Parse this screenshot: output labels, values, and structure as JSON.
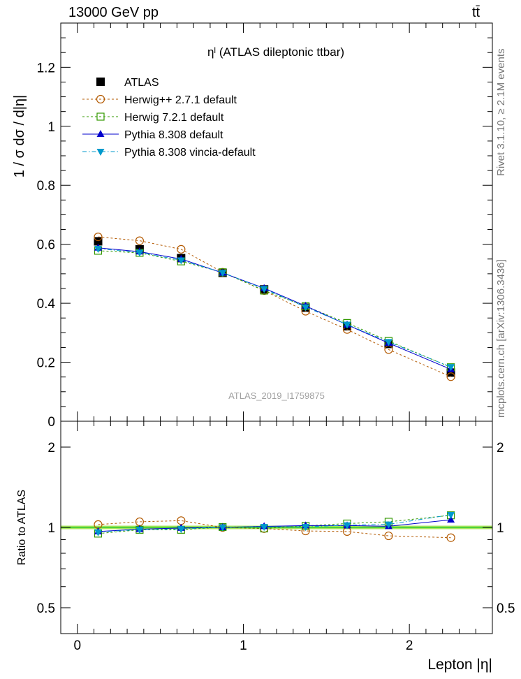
{
  "header": {
    "left": "13000 GeV pp",
    "right": "tt̄"
  },
  "side_text": {
    "rivet": "Rivet 3.1.10, ≥ 2.1M events",
    "mcplots": "mcplots.cern.ch [arXiv:1306.3436]"
  },
  "colors": {
    "atlas": "#000000",
    "herwigpp": "#b35900",
    "herwig7": "#339900",
    "pythia": "#0000cc",
    "vincia": "#0099cc",
    "band": "#a6e65a",
    "refline": "#33cc33",
    "watermark": "#a0a0a0"
  },
  "chart_data": [
    {
      "type": "line",
      "title": "ηˡ (ATLAS dileptonic ttbar)",
      "ylabel": "1 / σ  dσ / d|η|",
      "xlabel": "",
      "watermark": "ATLAS_2019_I1759875",
      "xlim": [
        -0.1,
        2.5
      ],
      "ylim": [
        0,
        1.35
      ],
      "yticks": [
        0,
        0.2,
        0.4,
        0.6,
        0.8,
        1,
        1.2
      ],
      "ytick_labels": [
        "0",
        "0.2",
        "0.4",
        "0.6",
        "0.8",
        "1",
        "1.2"
      ],
      "legend_position": "top-left",
      "x": [
        0.125,
        0.375,
        0.625,
        0.875,
        1.125,
        1.375,
        1.625,
        1.875,
        2.25
      ],
      "series": [
        {
          "name": "ATLAS",
          "key": "atlas",
          "marker": "filled-square",
          "line": "none",
          "values": [
            0.61,
            0.583,
            0.553,
            0.503,
            0.447,
            0.385,
            0.322,
            0.262,
            0.165
          ]
        },
        {
          "name": "Herwig++ 2.7.1 default",
          "key": "herwigpp",
          "marker": "open-circle",
          "line": "dashed",
          "values": [
            0.625,
            0.612,
            0.583,
            0.505,
            0.443,
            0.373,
            0.311,
            0.243,
            0.151
          ]
        },
        {
          "name": "Herwig 7.2.1 default",
          "key": "herwig7",
          "marker": "open-square",
          "line": "dashed",
          "values": [
            0.578,
            0.571,
            0.542,
            0.505,
            0.443,
            0.39,
            0.333,
            0.272,
            0.183
          ]
        },
        {
          "name": "Pythia 8.308 default",
          "key": "pythia",
          "marker": "filled-triangle-up",
          "line": "solid",
          "values": [
            0.588,
            0.575,
            0.55,
            0.503,
            0.451,
            0.391,
            0.327,
            0.265,
            0.176
          ]
        },
        {
          "name": "Pythia 8.308 vincia-default",
          "key": "vincia",
          "marker": "filled-triangle-down",
          "line": "dashdot",
          "values": [
            0.585,
            0.572,
            0.546,
            0.504,
            0.449,
            0.387,
            0.328,
            0.269,
            0.184
          ]
        }
      ]
    },
    {
      "type": "line",
      "title": "",
      "ylabel": "Ratio to ATLAS",
      "xlabel": "Lepton |η|",
      "scale_y": "log",
      "xlim": [
        -0.1,
        2.5
      ],
      "ylim": [
        0.4,
        2.5
      ],
      "yticks": [
        0.5,
        1,
        2
      ],
      "ytick_labels": [
        "0.5",
        "1",
        "2"
      ],
      "xticks": [
        0,
        1,
        2
      ],
      "xtick_labels": [
        "0",
        "1",
        "2"
      ],
      "reference": 1,
      "band": [
        0.985,
        1.015
      ],
      "x": [
        0.125,
        0.375,
        0.625,
        0.875,
        1.125,
        1.375,
        1.625,
        1.875,
        2.25
      ],
      "series": [
        {
          "name": "Herwig++ 2.7.1 default",
          "key": "herwigpp",
          "marker": "open-circle",
          "line": "dashed",
          "values": [
            1.025,
            1.05,
            1.06,
            1.0,
            0.99,
            0.97,
            0.965,
            0.93,
            0.915
          ]
        },
        {
          "name": "Herwig 7.2.1 default",
          "key": "herwig7",
          "marker": "open-square",
          "line": "dashed",
          "values": [
            0.948,
            0.98,
            0.98,
            1.003,
            0.991,
            1.013,
            1.034,
            1.05,
            1.11
          ]
        },
        {
          "name": "Pythia 8.308 default",
          "key": "pythia",
          "marker": "filled-triangle-up",
          "line": "solid",
          "values": [
            0.965,
            0.985,
            0.995,
            1.0,
            1.009,
            1.016,
            1.016,
            1.01,
            1.068
          ]
        },
        {
          "name": "Pythia 8.308 vincia-default",
          "key": "vincia",
          "marker": "filled-triangle-down",
          "line": "dashdot",
          "values": [
            0.96,
            0.982,
            0.987,
            1.002,
            1.005,
            1.005,
            1.02,
            1.027,
            1.115
          ]
        }
      ]
    }
  ]
}
